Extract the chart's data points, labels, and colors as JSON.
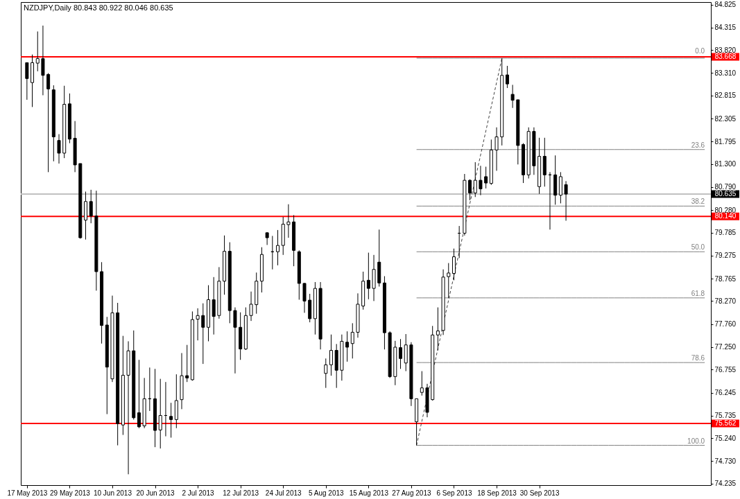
{
  "chart_data": {
    "type": "candlestick",
    "title": "NZDJPY,Daily 80.843 80.922 80.046 80.635",
    "categories": [
      "17 May 2013",
      null,
      null,
      null,
      null,
      null,
      null,
      null,
      "29 May 2013",
      null,
      null,
      null,
      null,
      null,
      null,
      null,
      "10 Jun 2013",
      null,
      null,
      null,
      null,
      null,
      null,
      null,
      "20 Jun 2013",
      null,
      null,
      null,
      null,
      null,
      null,
      null,
      "2 Jul 2013",
      null,
      null,
      null,
      null,
      null,
      null,
      null,
      "12 Jul 2013",
      null,
      null,
      null,
      null,
      null,
      null,
      null,
      "24 Jul 2013",
      null,
      null,
      null,
      null,
      null,
      null,
      null,
      "5 Aug 2013",
      null,
      null,
      null,
      null,
      null,
      null,
      null,
      "15 Aug 2013",
      null,
      null,
      null,
      null,
      null,
      null,
      null,
      "27 Aug 2013",
      null,
      null,
      null,
      null,
      null,
      null,
      null,
      "6 Sep 2013",
      null,
      null,
      null,
      null,
      null,
      null,
      null,
      "18 Sep 2013",
      null,
      null,
      null,
      null,
      null,
      null,
      null,
      "30 Sep 2013",
      null,
      null,
      null,
      null,
      null,
      null,
      null,
      null,
      null,
      null,
      null,
      null,
      null,
      null,
      null,
      null,
      null,
      null,
      null,
      null,
      null,
      null,
      null,
      null,
      null,
      null,
      null,
      null,
      null,
      null,
      null
    ],
    "ohlc": [
      [
        83.54,
        83.54,
        82.72,
        83.19
      ],
      [
        83.1,
        83.72,
        82.56,
        83.54
      ],
      [
        83.53,
        84.23,
        83.35,
        83.63
      ],
      [
        83.63,
        84.36,
        82.82,
        83.26
      ],
      [
        83.28,
        83.31,
        81.12,
        82.96
      ],
      [
        82.94,
        83.04,
        81.36,
        81.9
      ],
      [
        81.82,
        81.96,
        81.31,
        81.54
      ],
      [
        81.54,
        83.03,
        81.43,
        82.62
      ],
      [
        82.63,
        82.86,
        81.76,
        81.85
      ],
      [
        81.87,
        82.25,
        81.12,
        81.28
      ],
      [
        81.31,
        81.31,
        79.65,
        79.67
      ],
      [
        80.06,
        80.69,
        79.63,
        80.47
      ],
      [
        80.47,
        80.73,
        79.99,
        80.15
      ],
      [
        80.15,
        80.71,
        78.5,
        78.92
      ],
      [
        78.92,
        79.13,
        77.33,
        77.73
      ],
      [
        77.74,
        77.92,
        75.77,
        76.81
      ],
      [
        76.55,
        78.39,
        76.48,
        78.01
      ],
      [
        78.01,
        78.23,
        75.08,
        75.56
      ],
      [
        75.53,
        77.5,
        75.31,
        76.63
      ],
      [
        76.63,
        77.38,
        74.44,
        77.17
      ],
      [
        77.17,
        77.62,
        75.65,
        75.69
      ],
      [
        75.8,
        76.97,
        75.46,
        75.49
      ],
      [
        75.51,
        76.57,
        75.46,
        76.11
      ],
      [
        76.11,
        76.8,
        75.84,
        76.11
      ],
      [
        76.11,
        76.77,
        75.04,
        75.41
      ],
      [
        75.42,
        76.55,
        75.01,
        75.74
      ],
      [
        75.74,
        76.48,
        75.28,
        75.74
      ],
      [
        75.72,
        76.02,
        75.25,
        75.65
      ],
      [
        75.65,
        76.65,
        75.46,
        76.07
      ],
      [
        76.09,
        77.12,
        75.88,
        76.62
      ],
      [
        76.62,
        77.3,
        76.48,
        76.57
      ],
      [
        76.53,
        78.04,
        76.51,
        77.86
      ],
      [
        77.87,
        78.11,
        77.4,
        77.95
      ],
      [
        77.95,
        78.22,
        76.88,
        77.69
      ],
      [
        77.69,
        78.62,
        77.38,
        78.3
      ],
      [
        78.3,
        78.8,
        77.53,
        77.93
      ],
      [
        77.95,
        79.02,
        77.88,
        78.71
      ],
      [
        78.71,
        79.72,
        78.41,
        79.37
      ],
      [
        79.37,
        79.57,
        77.78,
        78.06
      ],
      [
        78.06,
        78.13,
        76.67,
        77.69
      ],
      [
        77.69,
        78.02,
        76.97,
        77.21
      ],
      [
        77.21,
        78.13,
        77.19,
        77.95
      ],
      [
        77.95,
        78.48,
        77.83,
        78.2
      ],
      [
        78.19,
        78.9,
        77.99,
        78.71
      ],
      [
        78.71,
        79.46,
        78.46,
        79.3
      ],
      [
        79.78,
        79.79,
        79.51,
        79.67
      ],
      [
        79.36,
        79.71,
        78.97,
        79.36
      ],
      [
        79.36,
        79.84,
        79.06,
        79.5
      ],
      [
        79.5,
        80.13,
        79.29,
        79.97
      ],
      [
        79.96,
        80.41,
        79.67,
        80.02
      ],
      [
        80.02,
        80.17,
        79.04,
        79.39
      ],
      [
        79.36,
        79.39,
        78.3,
        78.66
      ],
      [
        78.66,
        78.67,
        78.01,
        78.27
      ],
      [
        78.29,
        78.43,
        77.8,
        77.88
      ],
      [
        77.88,
        78.69,
        77.53,
        78.55
      ],
      [
        78.55,
        78.69,
        77.2,
        77.43
      ],
      [
        76.67,
        77.0,
        76.35,
        76.86
      ],
      [
        76.86,
        77.53,
        76.62,
        77.18
      ],
      [
        77.18,
        77.32,
        76.35,
        76.74
      ],
      [
        76.74,
        77.53,
        76.51,
        77.38
      ],
      [
        77.36,
        77.6,
        76.93,
        77.25
      ],
      [
        77.33,
        77.78,
        77.0,
        77.58
      ],
      [
        77.58,
        78.44,
        77.46,
        78.2
      ],
      [
        78.16,
        78.92,
        78.08,
        78.71
      ],
      [
        78.73,
        79.34,
        78.31,
        78.55
      ],
      [
        78.55,
        79.29,
        78.27,
        78.97
      ],
      [
        79.13,
        79.85,
        78.59,
        78.67
      ],
      [
        78.67,
        78.82,
        77.2,
        77.57
      ],
      [
        77.57,
        77.6,
        76.57,
        76.6
      ],
      [
        76.6,
        77.39,
        76.41,
        77.25
      ],
      [
        77.24,
        77.43,
        76.77,
        77.0
      ],
      [
        76.9,
        77.54,
        76.72,
        77.3
      ],
      [
        77.3,
        77.36,
        75.95,
        76.11
      ],
      [
        75.6,
        76.11,
        75.08,
        76.11
      ],
      [
        76.25,
        76.72,
        76.18,
        76.35
      ],
      [
        76.35,
        76.44,
        75.7,
        75.81
      ],
      [
        76.09,
        77.72,
        76.07,
        77.52
      ],
      [
        77.52,
        78.13,
        77.18,
        77.61
      ],
      [
        77.62,
        78.97,
        77.52,
        78.8
      ],
      [
        78.81,
        79.11,
        78.34,
        78.89
      ],
      [
        78.88,
        79.43,
        78.73,
        79.25
      ],
      [
        79.77,
        79.93,
        79.22,
        79.77
      ],
      [
        79.77,
        81.08,
        79.72,
        80.94
      ],
      [
        80.94,
        80.96,
        80.5,
        80.66
      ],
      [
        80.66,
        81.34,
        80.57,
        80.94
      ],
      [
        80.94,
        81.26,
        80.61,
        80.75
      ],
      [
        81.02,
        81.24,
        80.76,
        80.88
      ],
      [
        80.87,
        81.84,
        80.84,
        81.61
      ],
      [
        81.61,
        82.11,
        81.15,
        81.9
      ],
      [
        81.9,
        83.64,
        81.71,
        83.26
      ],
      [
        83.27,
        83.47,
        82.98,
        83.07
      ],
      [
        82.84,
        83.05,
        82.54,
        82.71
      ],
      [
        82.72,
        82.72,
        81.29,
        81.71
      ],
      [
        81.73,
        81.76,
        80.88,
        81.06
      ],
      [
        81.06,
        82.11,
        80.98,
        82.02
      ],
      [
        82.02,
        82.11,
        81.06,
        81.26
      ],
      [
        80.8,
        81.88,
        80.64,
        81.47
      ],
      [
        81.47,
        81.88,
        80.8,
        81.06
      ],
      [
        81.06,
        81.12,
        79.85,
        81.06
      ],
      [
        81.06,
        81.49,
        80.4,
        80.61
      ],
      [
        80.61,
        81.12,
        80.43,
        81.02
      ],
      [
        80.843,
        80.922,
        80.046,
        80.635
      ],
      null,
      null,
      null,
      null,
      null,
      null,
      null,
      null,
      null,
      null,
      null,
      null,
      null,
      null,
      null,
      null,
      null,
      null,
      null,
      null,
      null,
      null,
      null,
      null,
      null,
      null
    ],
    "series": [
      {
        "type": "line",
        "name": "0.0",
        "color": "#808080",
        "values": [
          null,
          null,
          null,
          null,
          null,
          null,
          null,
          null,
          null,
          null,
          null,
          null,
          null,
          null,
          null,
          null,
          null,
          null,
          null,
          null,
          null,
          null,
          null,
          null,
          null,
          null,
          null,
          null,
          null,
          null,
          null,
          null,
          null,
          null,
          null,
          null,
          null,
          null,
          null,
          null,
          null,
          null,
          null,
          null,
          null,
          null,
          null,
          null,
          null,
          null,
          null,
          null,
          null,
          null,
          null,
          null,
          null,
          null,
          null,
          null,
          null,
          null,
          null,
          null,
          null,
          null,
          null,
          null,
          null,
          null,
          null,
          null,
          null,
          83.64,
          83.64,
          83.64,
          83.64,
          83.64,
          83.64,
          83.64,
          83.64,
          83.64,
          83.64,
          83.64,
          83.64,
          83.64,
          83.64,
          83.64,
          83.64,
          83.64,
          83.64,
          83.64,
          83.64,
          83.64,
          83.64,
          83.64,
          83.64,
          83.64,
          83.64,
          83.64,
          83.64,
          83.64,
          83.64,
          83.64,
          83.64,
          83.64,
          83.64,
          83.64,
          83.64,
          83.64,
          83.64,
          83.64,
          83.64,
          83.64,
          83.64,
          83.64,
          83.64,
          83.64,
          83.64,
          83.64,
          83.64,
          83.64,
          83.64,
          83.64,
          83.64,
          83.64,
          83.64,
          83.64
        ]
      },
      {
        "type": "line",
        "name": "23.6",
        "color": "#808080",
        "values": [
          null,
          null,
          null,
          null,
          null,
          null,
          null,
          null,
          null,
          null,
          null,
          null,
          null,
          null,
          null,
          null,
          null,
          null,
          null,
          null,
          null,
          null,
          null,
          null,
          null,
          null,
          null,
          null,
          null,
          null,
          null,
          null,
          null,
          null,
          null,
          null,
          null,
          null,
          null,
          null,
          null,
          null,
          null,
          null,
          null,
          null,
          null,
          null,
          null,
          null,
          null,
          null,
          null,
          null,
          null,
          null,
          null,
          null,
          null,
          null,
          null,
          null,
          null,
          null,
          null,
          null,
          null,
          null,
          null,
          null,
          null,
          null,
          null,
          81.62,
          81.62,
          81.62,
          81.62,
          81.62,
          81.62,
          81.62,
          81.62,
          81.62,
          81.62,
          81.62,
          81.62,
          81.62,
          81.62,
          81.62,
          81.62,
          81.62,
          81.62,
          81.62,
          81.62,
          81.62,
          81.62,
          81.62,
          81.62,
          81.62,
          81.62,
          81.62,
          81.62,
          81.62,
          81.62,
          81.62,
          81.62,
          81.62,
          81.62,
          81.62,
          81.62,
          81.62,
          81.62,
          81.62,
          81.62,
          81.62,
          81.62,
          81.62,
          81.62,
          81.62,
          81.62,
          81.62,
          81.62,
          81.62,
          81.62,
          81.62,
          81.62,
          81.62,
          81.62,
          81.62
        ]
      },
      {
        "type": "line",
        "name": "38.2",
        "color": "#808080",
        "values": [
          null,
          null,
          null,
          null,
          null,
          null,
          null,
          null,
          null,
          null,
          null,
          null,
          null,
          null,
          null,
          null,
          null,
          null,
          null,
          null,
          null,
          null,
          null,
          null,
          null,
          null,
          null,
          null,
          null,
          null,
          null,
          null,
          null,
          null,
          null,
          null,
          null,
          null,
          null,
          null,
          null,
          null,
          null,
          null,
          null,
          null,
          null,
          null,
          null,
          null,
          null,
          null,
          null,
          null,
          null,
          null,
          null,
          null,
          null,
          null,
          null,
          null,
          null,
          null,
          null,
          null,
          null,
          null,
          null,
          null,
          null,
          null,
          null,
          80.37,
          80.37,
          80.37,
          80.37,
          80.37,
          80.37,
          80.37,
          80.37,
          80.37,
          80.37,
          80.37,
          80.37,
          80.37,
          80.37,
          80.37,
          80.37,
          80.37,
          80.37,
          80.37,
          80.37,
          80.37,
          80.37,
          80.37,
          80.37,
          80.37,
          80.37,
          80.37,
          80.37,
          80.37,
          80.37,
          80.37,
          80.37,
          80.37,
          80.37,
          80.37,
          80.37,
          80.37,
          80.37,
          80.37,
          80.37,
          80.37,
          80.37,
          80.37,
          80.37,
          80.37,
          80.37,
          80.37,
          80.37,
          80.37,
          80.37,
          80.37,
          80.37,
          80.37,
          80.37,
          80.37
        ]
      },
      {
        "type": "line",
        "name": "50.0",
        "color": "#808080",
        "values": [
          null,
          null,
          null,
          null,
          null,
          null,
          null,
          null,
          null,
          null,
          null,
          null,
          null,
          null,
          null,
          null,
          null,
          null,
          null,
          null,
          null,
          null,
          null,
          null,
          null,
          null,
          null,
          null,
          null,
          null,
          null,
          null,
          null,
          null,
          null,
          null,
          null,
          null,
          null,
          null,
          null,
          null,
          null,
          null,
          null,
          null,
          null,
          null,
          null,
          null,
          null,
          null,
          null,
          null,
          null,
          null,
          null,
          null,
          null,
          null,
          null,
          null,
          null,
          null,
          null,
          null,
          null,
          null,
          null,
          null,
          null,
          null,
          null,
          79.36,
          79.36,
          79.36,
          79.36,
          79.36,
          79.36,
          79.36,
          79.36,
          79.36,
          79.36,
          79.36,
          79.36,
          79.36,
          79.36,
          79.36,
          79.36,
          79.36,
          79.36,
          79.36,
          79.36,
          79.36,
          79.36,
          79.36,
          79.36,
          79.36,
          79.36,
          79.36,
          79.36,
          79.36,
          79.36,
          79.36,
          79.36,
          79.36,
          79.36,
          79.36,
          79.36,
          79.36,
          79.36,
          79.36,
          79.36,
          79.36,
          79.36,
          79.36,
          79.36,
          79.36,
          79.36,
          79.36,
          79.36,
          79.36,
          79.36,
          79.36,
          79.36,
          79.36,
          79.36,
          79.36
        ]
      },
      {
        "type": "line",
        "name": "61.8",
        "color": "#808080",
        "values": [
          null,
          null,
          null,
          null,
          null,
          null,
          null,
          null,
          null,
          null,
          null,
          null,
          null,
          null,
          null,
          null,
          null,
          null,
          null,
          null,
          null,
          null,
          null,
          null,
          null,
          null,
          null,
          null,
          null,
          null,
          null,
          null,
          null,
          null,
          null,
          null,
          null,
          null,
          null,
          null,
          null,
          null,
          null,
          null,
          null,
          null,
          null,
          null,
          null,
          null,
          null,
          null,
          null,
          null,
          null,
          null,
          null,
          null,
          null,
          null,
          null,
          null,
          null,
          null,
          null,
          null,
          null,
          null,
          null,
          null,
          null,
          null,
          null,
          78.34,
          78.34,
          78.34,
          78.34,
          78.34,
          78.34,
          78.34,
          78.34,
          78.34,
          78.34,
          78.34,
          78.34,
          78.34,
          78.34,
          78.34,
          78.34,
          78.34,
          78.34,
          78.34,
          78.34,
          78.34,
          78.34,
          78.34,
          78.34,
          78.34,
          78.34,
          78.34,
          78.34,
          78.34,
          78.34,
          78.34,
          78.34,
          78.34,
          78.34,
          78.34,
          78.34,
          78.34,
          78.34,
          78.34,
          78.34,
          78.34,
          78.34,
          78.34,
          78.34,
          78.34,
          78.34,
          78.34,
          78.34,
          78.34,
          78.34,
          78.34,
          78.34,
          78.34,
          78.34,
          78.34
        ]
      },
      {
        "type": "line",
        "name": "78.6",
        "color": "#808080",
        "values": [
          null,
          null,
          null,
          null,
          null,
          null,
          null,
          null,
          null,
          null,
          null,
          null,
          null,
          null,
          null,
          null,
          null,
          null,
          null,
          null,
          null,
          null,
          null,
          null,
          null,
          null,
          null,
          null,
          null,
          null,
          null,
          null,
          null,
          null,
          null,
          null,
          null,
          null,
          null,
          null,
          null,
          null,
          null,
          null,
          null,
          null,
          null,
          null,
          null,
          null,
          null,
          null,
          null,
          null,
          null,
          null,
          null,
          null,
          null,
          null,
          null,
          null,
          null,
          null,
          null,
          null,
          null,
          null,
          null,
          null,
          null,
          null,
          null,
          76.91,
          76.91,
          76.91,
          76.91,
          76.91,
          76.91,
          76.91,
          76.91,
          76.91,
          76.91,
          76.91,
          76.91,
          76.91,
          76.91,
          76.91,
          76.91,
          76.91,
          76.91,
          76.91,
          76.91,
          76.91,
          76.91,
          76.91,
          76.91,
          76.91,
          76.91,
          76.91,
          76.91,
          76.91,
          76.91,
          76.91,
          76.91,
          76.91,
          76.91,
          76.91,
          76.91,
          76.91,
          76.91,
          76.91,
          76.91,
          76.91,
          76.91,
          76.91,
          76.91,
          76.91,
          76.91,
          76.91,
          76.91,
          76.91,
          76.91,
          76.91,
          76.91,
          76.91,
          76.91,
          76.91
        ]
      },
      {
        "type": "line",
        "name": "100.0",
        "color": "#808080",
        "values": [
          null,
          null,
          null,
          null,
          null,
          null,
          null,
          null,
          null,
          null,
          null,
          null,
          null,
          null,
          null,
          null,
          null,
          null,
          null,
          null,
          null,
          null,
          null,
          null,
          null,
          null,
          null,
          null,
          null,
          null,
          null,
          null,
          null,
          null,
          null,
          null,
          null,
          null,
          null,
          null,
          null,
          null,
          null,
          null,
          null,
          null,
          null,
          null,
          null,
          null,
          null,
          null,
          null,
          null,
          null,
          null,
          null,
          null,
          null,
          null,
          null,
          null,
          null,
          null,
          null,
          null,
          null,
          null,
          null,
          null,
          null,
          null,
          null,
          75.08,
          75.08,
          75.08,
          75.08,
          75.08,
          75.08,
          75.08,
          75.08,
          75.08,
          75.08,
          75.08,
          75.08,
          75.08,
          75.08,
          75.08,
          75.08,
          75.08,
          75.08,
          75.08,
          75.08,
          75.08,
          75.08,
          75.08,
          75.08,
          75.08,
          75.08,
          75.08,
          75.08,
          75.08,
          75.08,
          75.08,
          75.08,
          75.08,
          75.08,
          75.08,
          75.08,
          75.08,
          75.08,
          75.08,
          75.08,
          75.08,
          75.08,
          75.08,
          75.08,
          75.08,
          75.08,
          75.08,
          75.08,
          75.08,
          75.08,
          75.08,
          75.08,
          75.08,
          75.08,
          75.08
        ]
      },
      {
        "type": "line",
        "color": "#404040",
        "line_style": "dashed",
        "values": [
          null,
          null,
          null,
          null,
          null,
          null,
          null,
          null,
          null,
          null,
          null,
          null,
          null,
          null,
          null,
          null,
          null,
          null,
          null,
          null,
          null,
          null,
          null,
          null,
          null,
          null,
          null,
          null,
          null,
          null,
          null,
          null,
          null,
          null,
          null,
          null,
          null,
          null,
          null,
          null,
          null,
          null,
          null,
          null,
          null,
          null,
          null,
          null,
          null,
          null,
          null,
          null,
          null,
          null,
          null,
          null,
          null,
          null,
          null,
          null,
          null,
          null,
          null,
          null,
          null,
          null,
          null,
          null,
          null,
          null,
          null,
          null,
          null,
          75.08,
          null,
          null,
          null,
          null,
          null,
          null,
          null,
          null,
          null,
          null,
          null,
          null,
          null,
          null,
          null,
          83.64,
          null,
          null,
          null,
          null,
          null,
          null,
          null,
          null,
          null,
          null,
          null,
          null,
          null,
          null,
          null,
          null,
          null,
          null,
          null,
          null,
          null,
          null,
          null,
          null,
          null,
          null,
          null,
          null,
          null,
          null,
          null,
          null,
          null,
          null,
          null,
          null,
          null,
          null
        ]
      }
    ],
    "ylim": [
      74.2,
      84.88
    ],
    "yticks": [
      84.825,
      84.315,
      {
        "value": 83.82,
        "label": "83.820"
      },
      {
        "value": 83.31,
        "label": "83.310"
      },
      82.815,
      82.305,
      81.795,
      {
        "value": 81.3,
        "label": "81.300"
      },
      {
        "value": 80.79,
        "label": "80.790"
      },
      {
        "value": 80.28,
        "label": "80.280"
      },
      79.785,
      79.275,
      78.765,
      {
        "value": 78.27,
        "label": "78.270"
      },
      {
        "value": 77.76,
        "label": "77.760"
      },
      {
        "value": 77.25,
        "label": "77.250"
      },
      76.755,
      76.245,
      75.735,
      {
        "value": 75.24,
        "label": "75.240"
      },
      {
        "value": 74.73,
        "label": "74.730"
      },
      74.235
    ],
    "ref_lines": [
      {
        "axis": "y",
        "value": 83.668,
        "label": "83.668",
        "color": "#ff0000"
      },
      {
        "axis": "y",
        "value": 80.635,
        "label": "80.635",
        "color": "#c0c0c0"
      },
      {
        "axis": "y",
        "value": 80.14,
        "label": "80.140",
        "color": "#ff0000"
      },
      {
        "axis": "y",
        "value": 75.562,
        "label": "75.562",
        "color": "#ff0000"
      }
    ]
  }
}
